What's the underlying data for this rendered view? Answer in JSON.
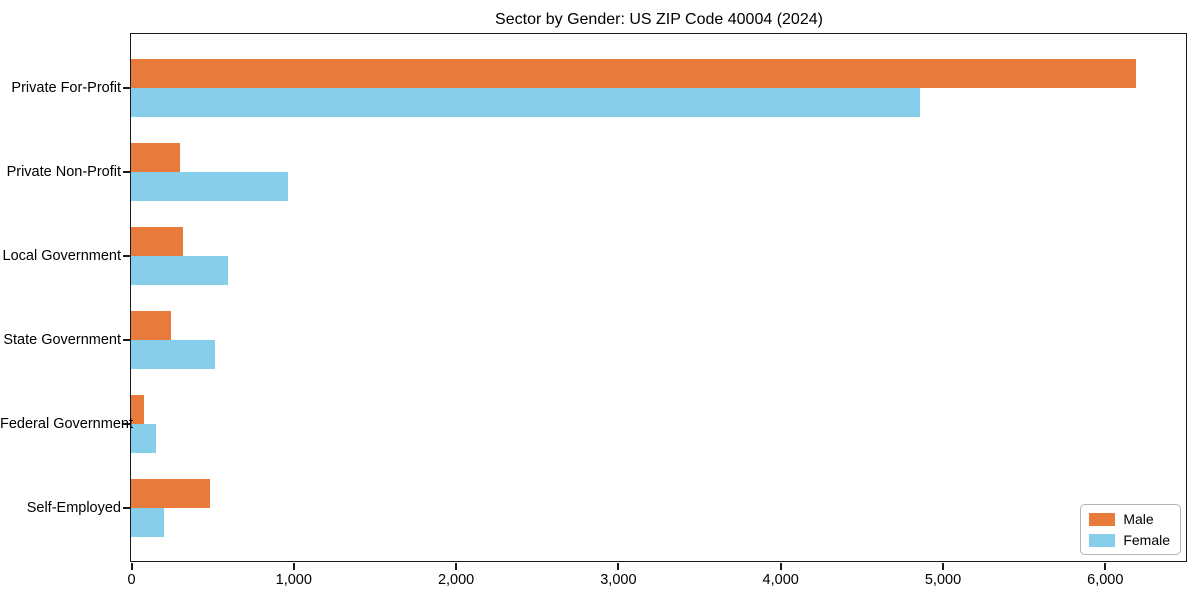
{
  "chart_data": {
    "type": "bar",
    "orientation": "horizontal",
    "title": "Sector by Gender: US ZIP Code 40004 (2024)",
    "xlabel": "",
    "ylabel": "",
    "categories": [
      "Private For-Profit",
      "Private Non-Profit",
      "Local Government",
      "State Government",
      "Federal Government",
      "Self-Employed"
    ],
    "series": [
      {
        "name": "Male",
        "color": "#E87A3C",
        "values": [
          6190,
          300,
          320,
          245,
          80,
          485
        ]
      },
      {
        "name": "Female",
        "color": "#87CEEB",
        "values": [
          4860,
          970,
          600,
          520,
          155,
          200
        ]
      }
    ],
    "xlim": [
      0,
      6500
    ],
    "xticks": [
      0,
      1000,
      2000,
      3000,
      4000,
      5000,
      6000
    ],
    "xtick_labels": [
      "0",
      "1,000",
      "2,000",
      "3,000",
      "4,000",
      "5,000",
      "6,000"
    ],
    "grid": false,
    "legend": {
      "position": "lower right"
    },
    "frame_color": "#1a1a1a",
    "background_color": "#ffffff"
  }
}
